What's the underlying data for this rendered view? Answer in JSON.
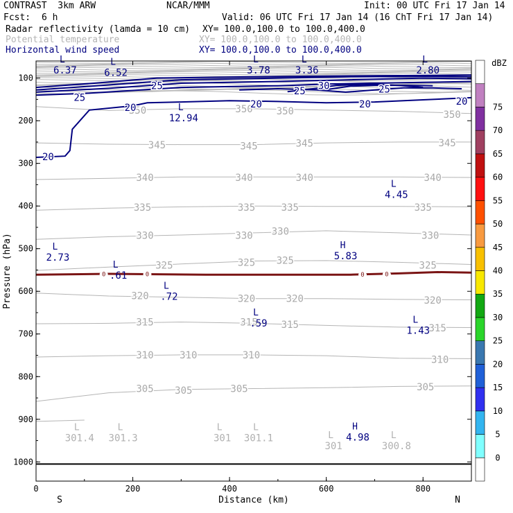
{
  "header": {
    "model": "CONTRAST  3km ARW",
    "center": "NCAR/MMM",
    "init": "Init: 00 UTC Fri 17 Jan 14",
    "fcst_label": "Fcst:",
    "fcst_value": "6 h",
    "valid": "Valid: 06 UTC Fri 17 Jan 14 (16 ChT Fri 17 Jan 14)"
  },
  "fields": [
    {
      "name": "Radar reflectivity (lamda = 10 cm)",
      "xy": "XY= 100.0,100.0 to 100.0,400.0",
      "color": "#000000"
    },
    {
      "name": "Potential temperature",
      "xy": "XY= 100.0,100.0 to 100.0,400.0",
      "color": "#b4b4b4"
    },
    {
      "name": "Horizontal wind speed",
      "xy": "XY= 100.0,100.0 to 100.0,400.0",
      "color": "#000080"
    }
  ],
  "colorbar": {
    "unit": "dBZ",
    "levels": [
      0,
      5,
      10,
      15,
      20,
      25,
      30,
      35,
      40,
      45,
      50,
      55,
      60,
      65,
      70,
      75
    ],
    "colors": [
      "#ffffff",
      "#80ffff",
      "#33b5f0",
      "#3030f0",
      "#2060d8",
      "#3a78b0",
      "#2ad52a",
      "#12a812",
      "#f8e800",
      "#f8c000",
      "#f89a40",
      "#ff5000",
      "#ff1010",
      "#c01010",
      "#a04060",
      "#8030a0",
      "#c080c0",
      "#ffffff"
    ]
  },
  "chart_data": {
    "type": "contour-cross-section",
    "xlabel": "Distance (km)",
    "ylabel": "Pressure (hPa)",
    "xlim": [
      0,
      900
    ],
    "ylim": [
      1045,
      60
    ],
    "x_ticks": [
      "0",
      "200",
      "400",
      "600",
      "800"
    ],
    "y_ticks": [
      "100",
      "200",
      "300",
      "400",
      "500",
      "600",
      "700",
      "800",
      "900",
      "1000"
    ],
    "x_end_labels": {
      "left": "S",
      "right": "N"
    },
    "surface_pressure": 1005,
    "freezing_level_label": "0",
    "theta_labels": [
      {
        "text": "350",
        "x": 210,
        "p": 175
      },
      {
        "text": "350",
        "x": 430,
        "p": 172
      },
      {
        "text": "350",
        "x": 515,
        "p": 177
      },
      {
        "text": "350",
        "x": 860,
        "p": 185
      },
      {
        "text": "345",
        "x": 250,
        "p": 257
      },
      {
        "text": "345",
        "x": 440,
        "p": 259
      },
      {
        "text": "345",
        "x": 555,
        "p": 253
      },
      {
        "text": "345",
        "x": 850,
        "p": 252
      },
      {
        "text": "340",
        "x": 225,
        "p": 333
      },
      {
        "text": "340",
        "x": 430,
        "p": 333
      },
      {
        "text": "340",
        "x": 555,
        "p": 333
      },
      {
        "text": "340",
        "x": 820,
        "p": 333
      },
      {
        "text": "335",
        "x": 220,
        "p": 403
      },
      {
        "text": "335",
        "x": 435,
        "p": 403
      },
      {
        "text": "335",
        "x": 525,
        "p": 403
      },
      {
        "text": "335",
        "x": 800,
        "p": 403
      },
      {
        "text": "330",
        "x": 225,
        "p": 469
      },
      {
        "text": "330",
        "x": 430,
        "p": 469
      },
      {
        "text": "330",
        "x": 505,
        "p": 459
      },
      {
        "text": "330",
        "x": 815,
        "p": 469
      },
      {
        "text": "325",
        "x": 265,
        "p": 539
      },
      {
        "text": "325",
        "x": 435,
        "p": 532
      },
      {
        "text": "325",
        "x": 515,
        "p": 527
      },
      {
        "text": "325",
        "x": 810,
        "p": 539
      },
      {
        "text": "320",
        "x": 215,
        "p": 610
      },
      {
        "text": "320",
        "x": 435,
        "p": 617
      },
      {
        "text": "320",
        "x": 535,
        "p": 617
      },
      {
        "text": "320",
        "x": 820,
        "p": 621
      },
      {
        "text": "315",
        "x": 225,
        "p": 672
      },
      {
        "text": "315",
        "x": 440,
        "p": 672
      },
      {
        "text": "315",
        "x": 525,
        "p": 678
      },
      {
        "text": "315",
        "x": 830,
        "p": 686
      },
      {
        "text": "310",
        "x": 225,
        "p": 749
      },
      {
        "text": "310",
        "x": 315,
        "p": 749
      },
      {
        "text": "310",
        "x": 445,
        "p": 749
      },
      {
        "text": "310",
        "x": 835,
        "p": 760
      },
      {
        "text": "305",
        "x": 225,
        "p": 828
      },
      {
        "text": "305",
        "x": 305,
        "p": 832
      },
      {
        "text": "305",
        "x": 420,
        "p": 828
      },
      {
        "text": "305",
        "x": 805,
        "p": 824
      }
    ],
    "wind_labels": [
      {
        "text": "25",
        "x": 90,
        "p": 145
      },
      {
        "text": "25",
        "x": 250,
        "p": 118
      },
      {
        "text": "20",
        "x": 195,
        "p": 169
      },
      {
        "text": "20",
        "x": 25,
        "p": 284
      },
      {
        "text": "30",
        "x": 595,
        "p": 118
      },
      {
        "text": "25",
        "x": 545,
        "p": 130
      },
      {
        "text": "25",
        "x": 720,
        "p": 126
      },
      {
        "text": "20",
        "x": 455,
        "p": 161
      },
      {
        "text": "20",
        "x": 680,
        "p": 161
      },
      {
        "text": "20",
        "x": 880,
        "p": 154
      }
    ],
    "extrema_wind": [
      {
        "kind": "L",
        "value": "6.37",
        "x": 60,
        "p": 86
      },
      {
        "kind": "L",
        "value": "6.52",
        "x": 165,
        "p": 92
      },
      {
        "kind": "L",
        "value": "3.78",
        "x": 460,
        "p": 86
      },
      {
        "kind": "L",
        "value": "3.36",
        "x": 560,
        "p": 86
      },
      {
        "kind": "L",
        "value": "2.80",
        "x": 810,
        "p": 86
      },
      {
        "kind": "L",
        "value": "12.94",
        "x": 305,
        "p": 198
      },
      {
        "kind": "L",
        "value": "4.45",
        "x": 745,
        "p": 378
      },
      {
        "kind": "L",
        "value": "2.73",
        "x": 45,
        "p": 525
      },
      {
        "kind": "H",
        "value": "5.83",
        "x": 640,
        "p": 522
      },
      {
        "kind": "L",
        "value": ".61",
        "x": 170,
        "p": 567
      },
      {
        "kind": "L",
        "value": ".72",
        "x": 275,
        "p": 617
      },
      {
        "kind": "L",
        "value": ".59",
        "x": 460,
        "p": 679
      },
      {
        "kind": "L",
        "value": "1.43",
        "x": 790,
        "p": 696
      },
      {
        "kind": "H",
        "value": "4.98",
        "x": 665,
        "p": 947
      }
    ],
    "extrema_theta": [
      {
        "kind": "L",
        "value": "301.4",
        "x": 90,
        "p": 948
      },
      {
        "kind": "L",
        "value": "301.3",
        "x": 180,
        "p": 948
      },
      {
        "kind": "L",
        "value": "301",
        "x": 385,
        "p": 948
      },
      {
        "kind": "L",
        "value": "301.1",
        "x": 460,
        "p": 948
      },
      {
        "kind": "L",
        "value": "301",
        "x": 615,
        "p": 967
      },
      {
        "kind": "L",
        "value": "300.8",
        "x": 745,
        "p": 967
      }
    ]
  }
}
